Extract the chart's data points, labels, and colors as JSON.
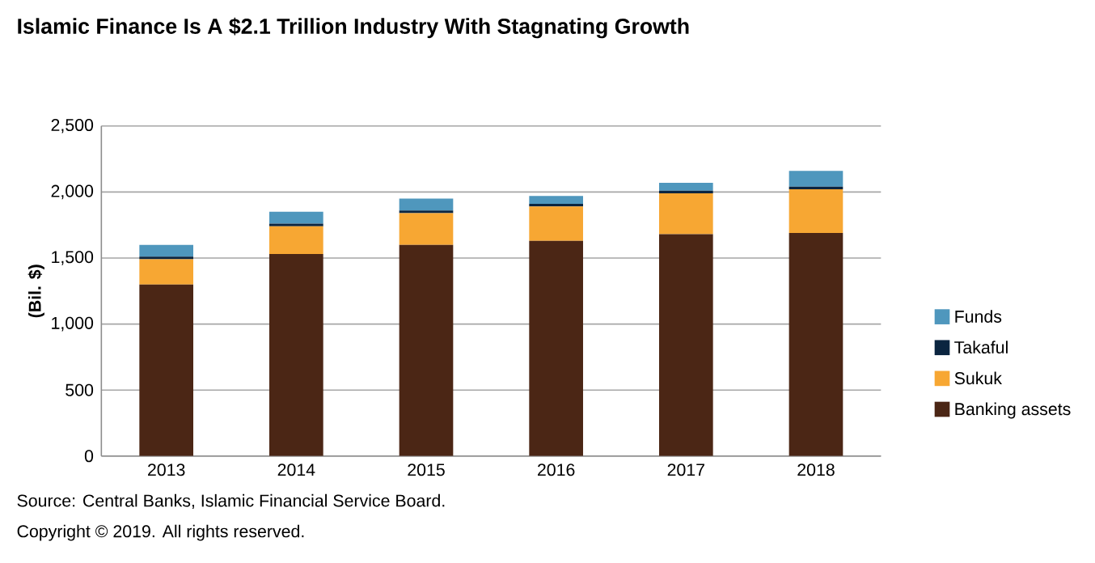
{
  "chart_data": {
    "type": "bar",
    "stacked": true,
    "title": "Islamic Finance Is A $2.1 Trillion Industry With Stagnating Growth",
    "ylabel": "(Bil. $)",
    "categories": [
      "2013",
      "2014",
      "2015",
      "2016",
      "2017",
      "2018"
    ],
    "series": [
      {
        "name": "Banking assets",
        "color": "#4b2615",
        "values": [
          1300,
          1530,
          1600,
          1630,
          1680,
          1690
        ]
      },
      {
        "name": "Sukuk",
        "color": "#f7a733",
        "values": [
          190,
          210,
          240,
          260,
          310,
          330
        ]
      },
      {
        "name": "Takaful",
        "color": "#0b2540",
        "values": [
          20,
          20,
          20,
          20,
          20,
          20
        ]
      },
      {
        "name": "Funds",
        "color": "#4f97bd",
        "values": [
          90,
          90,
          90,
          60,
          60,
          120
        ]
      }
    ],
    "ylim": [
      0,
      2500
    ],
    "yticks": [
      0,
      {
        "value": 500,
        "label": "500"
      },
      {
        "value": 1000,
        "label": "1,000"
      },
      {
        "value": 1500,
        "label": "1,500"
      },
      {
        "value": 2000,
        "label": "2,000"
      },
      {
        "value": 2500,
        "label": "2,500"
      }
    ],
    "grid": "y",
    "legend": "right",
    "annotations": [
      "Source: Central Banks, Islamic Financial Service Board.",
      "Copyright © 2019. All rights reserved."
    ]
  }
}
